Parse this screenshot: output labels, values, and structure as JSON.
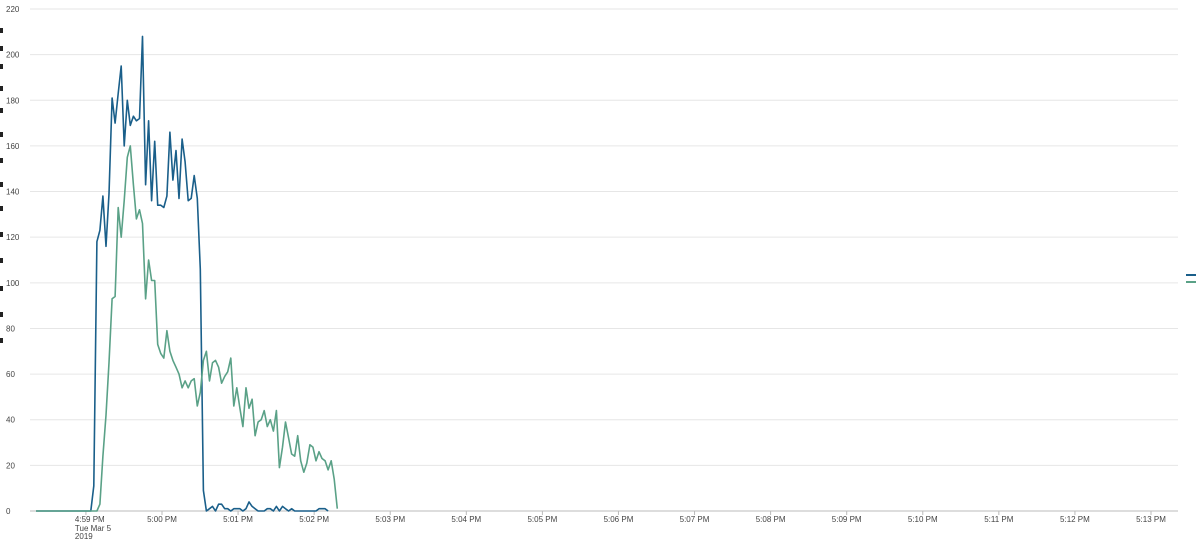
{
  "colors": {
    "series_1": "#1a5f8a",
    "series_2": "#5aa187",
    "grid": "#e6e6e6"
  },
  "chart_data": {
    "type": "line",
    "xlabel": "",
    "ylabel": "",
    "ylim": [
      0,
      220
    ],
    "yticks": [
      "0",
      "20",
      "40",
      "60",
      "80",
      "100",
      "120",
      "140",
      "160",
      "180",
      "200",
      "220"
    ],
    "xlim": [
      0,
      88
    ],
    "xticks": [
      {
        "x": 5,
        "label": "4:59 PM",
        "sub": [
          "Tue Mar 5",
          "2019"
        ]
      },
      {
        "x": 10,
        "label": "5:00 PM"
      },
      {
        "x": 15,
        "label": "5:01 PM"
      },
      {
        "x": 20,
        "label": "5:02 PM"
      },
      {
        "x": 25,
        "label": "5:03 PM"
      },
      {
        "x": 30,
        "label": "5:04 PM"
      },
      {
        "x": 35,
        "label": "5:05 PM"
      },
      {
        "x": 40,
        "label": "5:06 PM"
      },
      {
        "x": 45,
        "label": "5:07 PM"
      },
      {
        "x": 50,
        "label": "5:08 PM"
      },
      {
        "x": 55,
        "label": "5:09 PM"
      },
      {
        "x": 60,
        "label": "5:10 PM"
      },
      {
        "x": 65,
        "label": "5:11 PM"
      },
      {
        "x": 70,
        "label": "5:12 PM"
      },
      {
        "x": 75,
        "label": "5:13 PM"
      }
    ],
    "grid": true,
    "legend": "right",
    "series": [
      {
        "color": "#1a5f8a",
        "values": [
          0,
          0,
          0,
          0,
          0,
          0,
          0,
          0,
          0,
          0,
          0,
          0,
          0,
          0,
          0,
          0,
          0,
          0,
          0,
          11,
          118,
          123,
          138,
          116,
          139,
          181,
          170,
          183,
          195,
          160,
          180,
          169,
          173,
          171,
          172,
          208,
          143,
          171,
          136,
          162,
          134,
          134,
          133,
          138,
          166,
          145,
          158,
          137,
          163,
          153,
          136,
          137,
          147,
          137,
          106,
          9,
          0,
          1,
          2,
          0,
          3,
          3,
          1,
          1,
          0,
          1,
          1,
          1,
          0,
          1,
          4,
          2,
          1,
          0,
          0,
          0,
          1,
          1,
          0,
          2,
          0,
          2,
          1,
          0,
          1,
          0,
          0,
          0,
          0,
          0,
          0,
          0,
          0,
          1,
          1,
          1,
          0
        ]
      },
      {
        "color": "#5aa187",
        "values": [
          0,
          0,
          0,
          0,
          0,
          0,
          0,
          0,
          0,
          0,
          0,
          0,
          0,
          0,
          0,
          0,
          0,
          0,
          0,
          0,
          0,
          3,
          24,
          42,
          65,
          93,
          94,
          133,
          120,
          136,
          155,
          160,
          143,
          128,
          132,
          126,
          93,
          110,
          101,
          101,
          73,
          69,
          67,
          79,
          70,
          66,
          63,
          60,
          54,
          57,
          54,
          57,
          58,
          46,
          52,
          66,
          70,
          57,
          65,
          66,
          63,
          56,
          59,
          61,
          67,
          46,
          54,
          45,
          37,
          54,
          45,
          49,
          33,
          39,
          40,
          44,
          37,
          40,
          35,
          44,
          19,
          28,
          39,
          32,
          25,
          24,
          33,
          22,
          17,
          21,
          29,
          28,
          22,
          26,
          23,
          22,
          18,
          22,
          14,
          1
        ]
      }
    ]
  }
}
